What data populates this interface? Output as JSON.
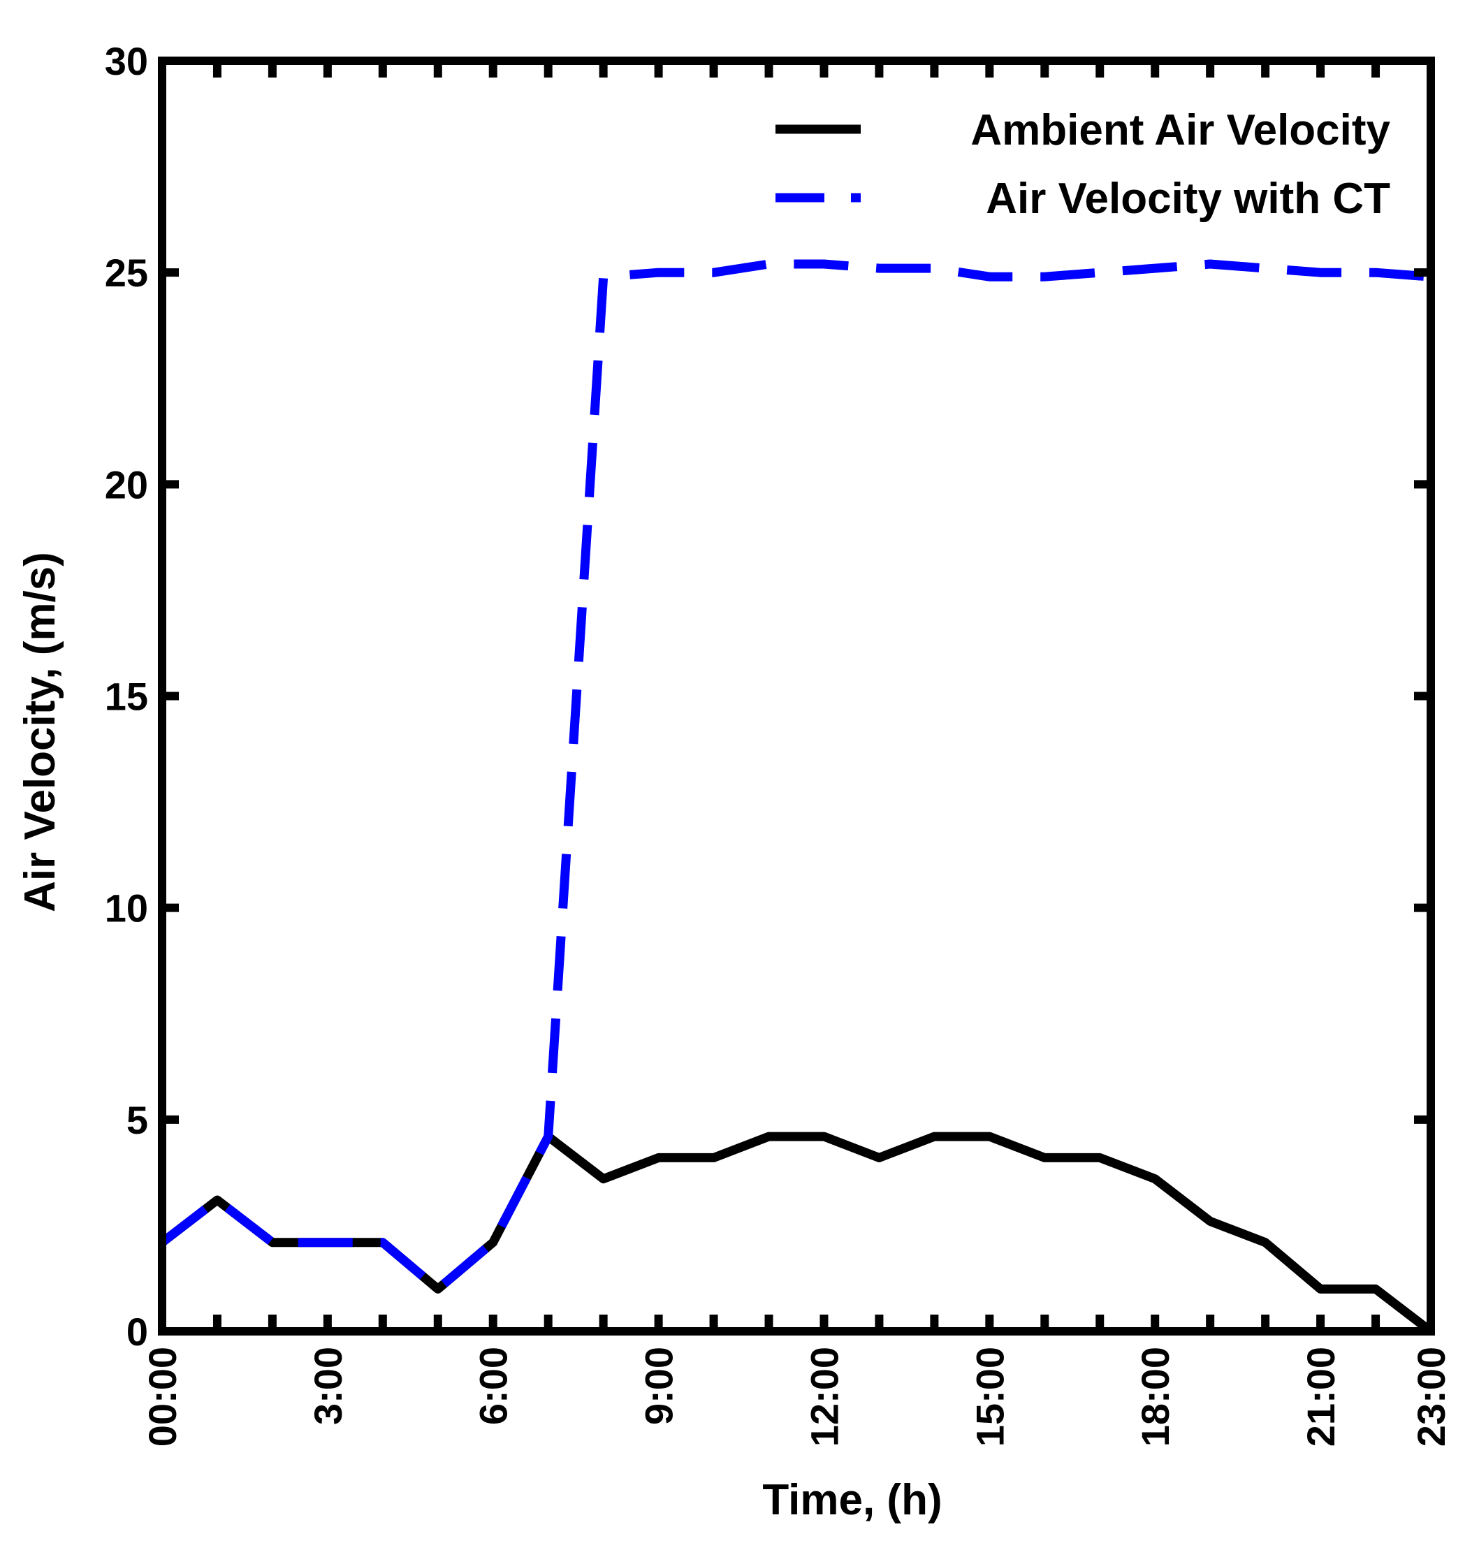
{
  "chart_data": {
    "type": "line",
    "title": "",
    "xlabel": "Time, (h)",
    "ylabel": "Air Velocity, (m/s)",
    "xlim": [
      0,
      23
    ],
    "ylim": [
      0,
      30
    ],
    "x": [
      0,
      1,
      2,
      3,
      4,
      5,
      6,
      7,
      8,
      9,
      10,
      11,
      12,
      13,
      14,
      15,
      16,
      17,
      18,
      19,
      20,
      21,
      22,
      23
    ],
    "xticks": [
      0,
      3,
      6,
      9,
      12,
      15,
      18,
      21,
      23
    ],
    "xtick_labels": [
      "00:00",
      "3:00",
      "6:00",
      "9:00",
      "12:00",
      "15:00",
      "18:00",
      "21:00",
      "23:00"
    ],
    "yticks": [
      0,
      5,
      10,
      15,
      20,
      25,
      30
    ],
    "ytick_labels": [
      "0",
      "5",
      "10",
      "15",
      "20",
      "25",
      "30"
    ],
    "grid": false,
    "legend_position": "top-right",
    "series": [
      {
        "name": "Ambient Air Velocity",
        "color": "#000000",
        "style": "solid",
        "values": [
          2.1,
          3.1,
          2.1,
          2.1,
          2.1,
          1.0,
          2.1,
          4.6,
          3.6,
          4.1,
          4.1,
          4.6,
          4.6,
          4.1,
          4.6,
          4.6,
          4.1,
          4.1,
          3.6,
          2.6,
          2.1,
          1.0,
          1.0,
          0.0
        ]
      },
      {
        "name": "Air Velocity with CT",
        "color": "#0000ff",
        "style": "dashed",
        "values": [
          2.1,
          3.1,
          2.1,
          2.1,
          2.1,
          1.0,
          2.1,
          4.6,
          24.9,
          25.0,
          25.0,
          25.2,
          25.2,
          25.1,
          25.1,
          24.9,
          24.9,
          25.0,
          25.1,
          25.2,
          25.1,
          25.0,
          25.0,
          24.9
        ]
      }
    ]
  }
}
